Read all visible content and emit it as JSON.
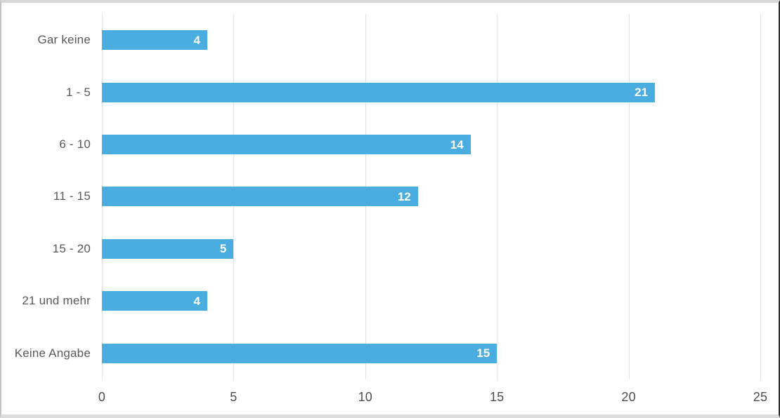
{
  "chart_data": {
    "type": "bar",
    "orientation": "horizontal",
    "title": "",
    "categories": [
      "Gar keine",
      "1 - 5",
      "6 - 10",
      "11 - 15",
      "15 - 20",
      "21 und mehr",
      "Keine Angabe"
    ],
    "values": [
      4,
      21,
      14,
      12,
      5,
      4,
      15
    ],
    "xlabel": "",
    "ylabel": "",
    "xlim": [
      0,
      25
    ],
    "xticks": [
      0,
      5,
      10,
      15,
      20,
      25
    ],
    "grid": true,
    "legend": "none",
    "value_labels": "inside-end",
    "colors": {
      "bar": "#4aaddf",
      "value_label": "#ffffff",
      "category_label": "#58585a",
      "tick_label": "#4d4d4d",
      "gridline": "#e3e3e3",
      "background": "#ffffff"
    }
  }
}
